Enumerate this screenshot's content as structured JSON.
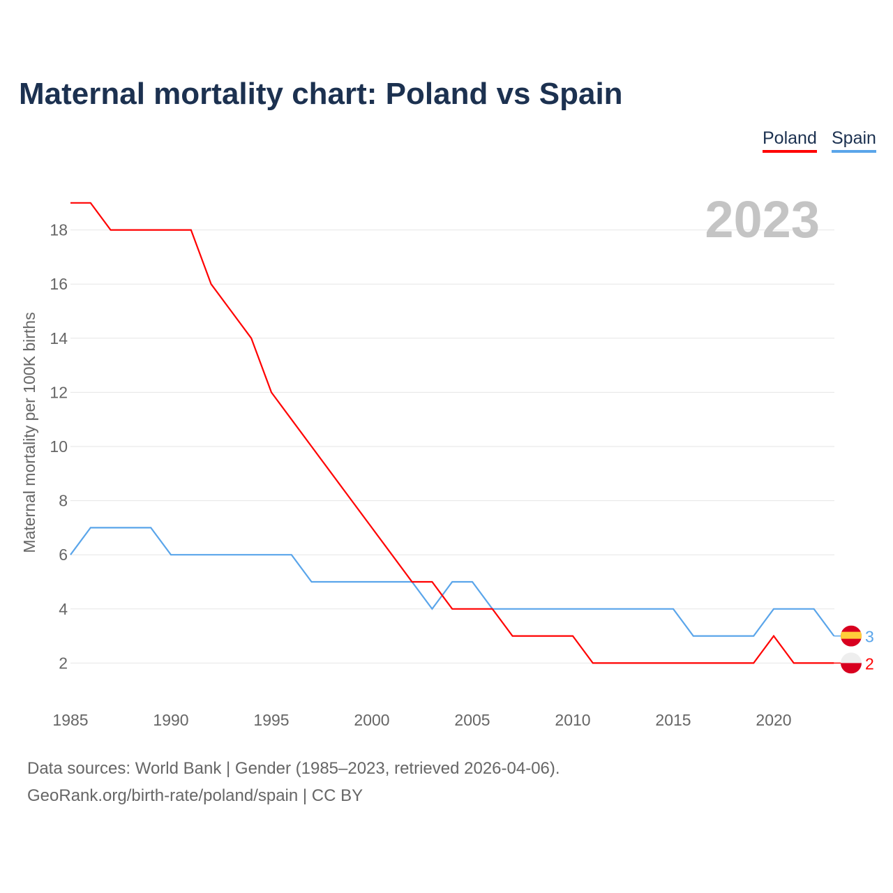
{
  "title": "Maternal mortality chart: Poland vs Spain",
  "legend": [
    {
      "label": "Poland",
      "color": "#ff0000"
    },
    {
      "label": "Spain",
      "color": "#5aa5ea"
    }
  ],
  "chart_data": {
    "type": "line",
    "title": "Maternal mortality chart: Poland vs Spain",
    "xlabel": "",
    "ylabel": "Maternal mortality per 100K births",
    "year_label": "2023",
    "x": [
      1985,
      1986,
      1987,
      1988,
      1989,
      1990,
      1991,
      1992,
      1993,
      1994,
      1995,
      1996,
      1997,
      1998,
      1999,
      2000,
      2001,
      2002,
      2003,
      2004,
      2005,
      2006,
      2007,
      2008,
      2009,
      2010,
      2011,
      2012,
      2013,
      2014,
      2015,
      2016,
      2017,
      2018,
      2019,
      2020,
      2021,
      2022,
      2023
    ],
    "series": [
      {
        "name": "Poland",
        "color": "#ff0000",
        "end_label": "2",
        "values": [
          19,
          19,
          18,
          18,
          18,
          18,
          18,
          16,
          15,
          14,
          12,
          11,
          10,
          9,
          8,
          7,
          6,
          5,
          5,
          4,
          4,
          4,
          3,
          3,
          3,
          3,
          2,
          2,
          2,
          2,
          2,
          2,
          2,
          2,
          2,
          3,
          2,
          2,
          2
        ]
      },
      {
        "name": "Spain",
        "color": "#5aa5ea",
        "end_label": "3",
        "values": [
          6,
          7,
          7,
          7,
          7,
          6,
          6,
          6,
          6,
          6,
          6,
          6,
          5,
          5,
          5,
          5,
          5,
          5,
          4,
          5,
          5,
          4,
          4,
          4,
          4,
          4,
          4,
          4,
          4,
          4,
          4,
          3,
          3,
          3,
          3,
          4,
          4,
          4,
          3
        ]
      }
    ],
    "xticks": [
      "1985",
      "1990",
      "1995",
      "2000",
      "2005",
      "2010",
      "2015",
      "2020"
    ],
    "yticks": [
      "2",
      "4",
      "6",
      "8",
      "10",
      "12",
      "14",
      "16",
      "18"
    ],
    "xlim": [
      1985,
      2023
    ],
    "ylim": [
      0,
      20
    ],
    "grid": true,
    "legend_position": "top-right"
  },
  "footer": {
    "line1": "Data sources: World Bank | Gender (1985–2023, retrieved 2026-04-06).",
    "line2": "GeoRank.org/birth-rate/poland/spain | CC BY"
  }
}
